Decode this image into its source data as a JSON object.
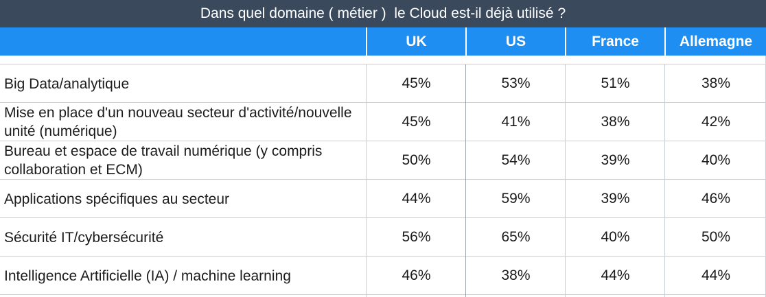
{
  "chart_data": {
    "type": "table",
    "title": "Dans quel domaine ( métier )  le Cloud est-il déjà utilisé ?",
    "columns": [
      "UK",
      "US",
      "France",
      "Allemagne"
    ],
    "rows": [
      {
        "label": "Big Data/analytique",
        "values": [
          "45%",
          "53%",
          "51%",
          "38%"
        ]
      },
      {
        "label": "Mise en place d'un nouveau secteur d'activité/nouvelle unité (numérique)",
        "values": [
          "45%",
          "41%",
          "38%",
          "42%"
        ]
      },
      {
        "label": "Bureau et espace de travail numérique (y compris collaboration et ECM)",
        "values": [
          "50%",
          "54%",
          "39%",
          "40%"
        ]
      },
      {
        "label": "Applications spécifiques au secteur",
        "values": [
          "44%",
          "59%",
          "39%",
          "46%"
        ]
      },
      {
        "label": "Sécurité IT/cybersécurité",
        "values": [
          "56%",
          "65%",
          "40%",
          "50%"
        ]
      },
      {
        "label": "Intelligence Artificielle (IA) / machine learning",
        "values": [
          "46%",
          "38%",
          "44%",
          "44%"
        ]
      }
    ]
  },
  "colors": {
    "title_bg": "#3a4a5c",
    "header_bg": "#1e8ef2",
    "grid": "#c9ced6"
  }
}
